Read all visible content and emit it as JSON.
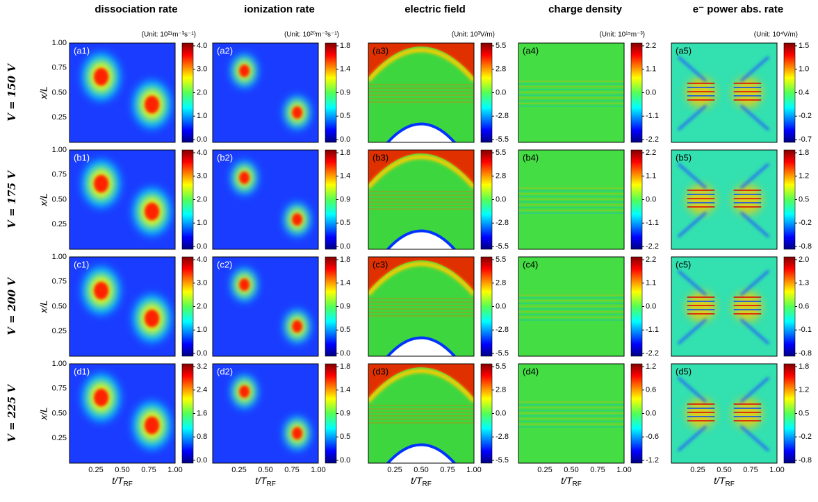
{
  "columns": [
    {
      "title": "dissociation rate",
      "unit": "(Unit: 10²¹m⁻³s⁻¹)"
    },
    {
      "title": "ionization rate",
      "unit": "(Unit: 10²⁰m⁻³s⁻¹)"
    },
    {
      "title": "electric field",
      "unit": "(Unit: 10³V/m)"
    },
    {
      "title": "charge density",
      "unit": "(Unit: 10¹⁵m⁻³)"
    },
    {
      "title": "e⁻ power abs. rate",
      "unit": "(Unit: 10⁴V/m)"
    }
  ],
  "rows": [
    {
      "label": "V = 150 V",
      "panels": [
        {
          "tag": "(a1)",
          "colorbar": [
            "4.0",
            "3.0",
            "2.0",
            "1.0",
            "0.0"
          ]
        },
        {
          "tag": "(a2)",
          "colorbar": [
            "1.8",
            "1.4",
            "0.9",
            "0.5",
            "0.0"
          ]
        },
        {
          "tag": "(a3)",
          "colorbar": [
            "5.5",
            "2.8",
            "0.0",
            "-2.8",
            "-5.5"
          ]
        },
        {
          "tag": "(a4)",
          "colorbar": [
            "2.2",
            "1.1",
            "0.0",
            "-1.1",
            "-2.2"
          ]
        },
        {
          "tag": "(a5)",
          "colorbar": [
            "1.5",
            "1.0",
            "0.4",
            "-0.2",
            "-0.7"
          ]
        }
      ]
    },
    {
      "label": "V = 175 V",
      "panels": [
        {
          "tag": "(b1)",
          "colorbar": [
            "4.0",
            "3.0",
            "2.0",
            "1.0",
            "0.0"
          ]
        },
        {
          "tag": "(b2)",
          "colorbar": [
            "1.8",
            "1.4",
            "0.9",
            "0.5",
            "0.0"
          ]
        },
        {
          "tag": "(b3)",
          "colorbar": [
            "5.5",
            "2.8",
            "0.0",
            "-2.8",
            "-5.5"
          ]
        },
        {
          "tag": "(b4)",
          "colorbar": [
            "2.2",
            "1.1",
            "0.0",
            "-1.1",
            "-2.2"
          ]
        },
        {
          "tag": "(b5)",
          "colorbar": [
            "1.8",
            "1.2",
            "0.5",
            "-0.2",
            "-0.8"
          ]
        }
      ]
    },
    {
      "label": "V = 200 V",
      "panels": [
        {
          "tag": "(c1)",
          "colorbar": [
            "4.0",
            "3.0",
            "2.0",
            "1.0",
            "0.0"
          ]
        },
        {
          "tag": "(c2)",
          "colorbar": [
            "1.8",
            "1.4",
            "0.9",
            "0.5",
            "0.0"
          ]
        },
        {
          "tag": "(c3)",
          "colorbar": [
            "5.5",
            "2.8",
            "0.0",
            "-2.8",
            "-5.5"
          ]
        },
        {
          "tag": "(c4)",
          "colorbar": [
            "2.2",
            "1.1",
            "0.0",
            "-1.1",
            "-2.2"
          ]
        },
        {
          "tag": "(c5)",
          "colorbar": [
            "2.0",
            "1.3",
            "0.6",
            "-0.1",
            "-0.8"
          ]
        }
      ]
    },
    {
      "label": "V = 225 V",
      "panels": [
        {
          "tag": "(d1)",
          "colorbar": [
            "3.2",
            "2.4",
            "1.6",
            "0.8",
            "0.0"
          ]
        },
        {
          "tag": "(d2)",
          "colorbar": [
            "1.8",
            "1.4",
            "0.9",
            "0.5",
            "0.0"
          ]
        },
        {
          "tag": "(d3)",
          "colorbar": [
            "5.5",
            "2.8",
            "0.0",
            "-2.8",
            "-5.5"
          ]
        },
        {
          "tag": "(d4)",
          "colorbar": [
            "1.2",
            "0.6",
            "0.0",
            "-0.6",
            "-1.2"
          ]
        },
        {
          "tag": "(d5)",
          "colorbar": [
            "1.8",
            "1.2",
            "0.5",
            "-0.2",
            "-0.8"
          ]
        }
      ]
    }
  ],
  "y_axis": {
    "label": "x/L",
    "ticks": [
      "1.00",
      "0.75",
      "0.50",
      "0.25"
    ]
  },
  "x_axis": {
    "label": "t/T",
    "label_sub": "RF",
    "ticks": [
      "0.25",
      "0.50",
      "0.75",
      "1.00"
    ]
  }
}
